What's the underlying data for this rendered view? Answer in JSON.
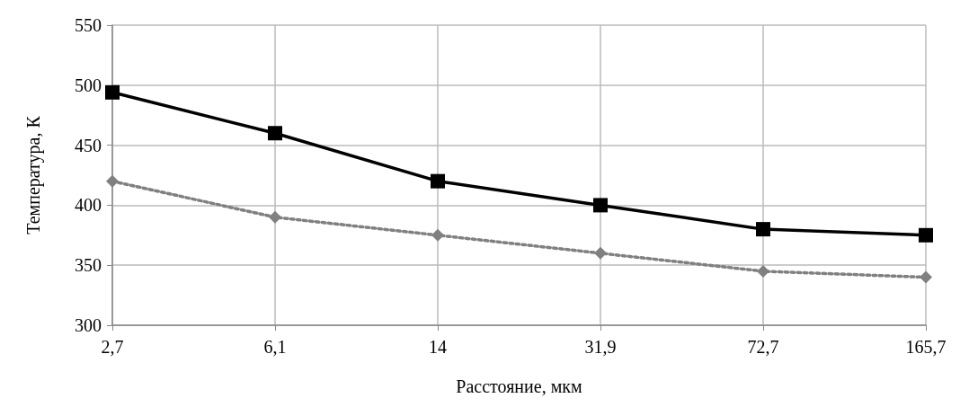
{
  "chart_data": {
    "type": "line",
    "xlabel": "Расстояние, мкм",
    "ylabel": "Температура, К",
    "categories": [
      "2,7",
      "6,1",
      "14",
      "31,9",
      "72,7",
      "165,7"
    ],
    "series": [
      {
        "color": "#000000",
        "values": [
          494,
          460,
          420,
          400,
          380,
          375
        ],
        "marker": "square",
        "line_style": "solid"
      },
      {
        "color": "#808080",
        "values": [
          420,
          390,
          375,
          360,
          345,
          340
        ],
        "marker": "diamond",
        "line_style": "dotted"
      }
    ],
    "ylim": [
      300,
      550
    ],
    "yticks": [
      300,
      350,
      400,
      450,
      500,
      550
    ],
    "grid": true
  }
}
